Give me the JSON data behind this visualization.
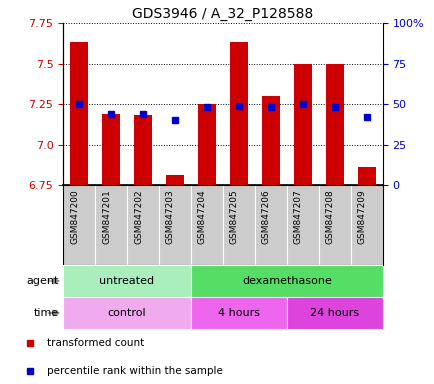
{
  "title": "GDS3946 / A_32_P128588",
  "samples": [
    "GSM847200",
    "GSM847201",
    "GSM847202",
    "GSM847203",
    "GSM847204",
    "GSM847205",
    "GSM847206",
    "GSM847207",
    "GSM847208",
    "GSM847209"
  ],
  "transformed_count": [
    7.63,
    7.19,
    7.18,
    6.81,
    7.25,
    7.63,
    7.3,
    7.5,
    7.5,
    6.86
  ],
  "percentile_rank": [
    50,
    44,
    44,
    40,
    48,
    49,
    48,
    50,
    48,
    42
  ],
  "ylim_left": [
    6.75,
    7.75
  ],
  "ylim_right": [
    0,
    100
  ],
  "yticks_left": [
    6.75,
    7.0,
    7.25,
    7.5,
    7.75
  ],
  "yticks_right": [
    0,
    25,
    50,
    75,
    100
  ],
  "ytick_labels_right": [
    "0",
    "25",
    "50",
    "75",
    "100%"
  ],
  "bar_color": "#cc0000",
  "dot_color": "#0000cc",
  "left_tick_color": "#cc0000",
  "right_tick_color": "#0000cc",
  "agent_groups": [
    {
      "label": "untreated",
      "start": 0,
      "end": 4,
      "color": "#aaeebb"
    },
    {
      "label": "dexamethasone",
      "start": 4,
      "end": 10,
      "color": "#55dd66"
    }
  ],
  "time_groups": [
    {
      "label": "control",
      "start": 0,
      "end": 4,
      "color": "#f0aaee"
    },
    {
      "label": "4 hours",
      "start": 4,
      "end": 7,
      "color": "#ee66ee"
    },
    {
      "label": "24 hours",
      "start": 7,
      "end": 10,
      "color": "#dd44dd"
    }
  ],
  "legend_items": [
    {
      "label": "transformed count",
      "color": "#cc0000"
    },
    {
      "label": "percentile rank within the sample",
      "color": "#0000cc"
    }
  ],
  "bar_width": 0.55,
  "sample_bg_color": "#cccccc"
}
